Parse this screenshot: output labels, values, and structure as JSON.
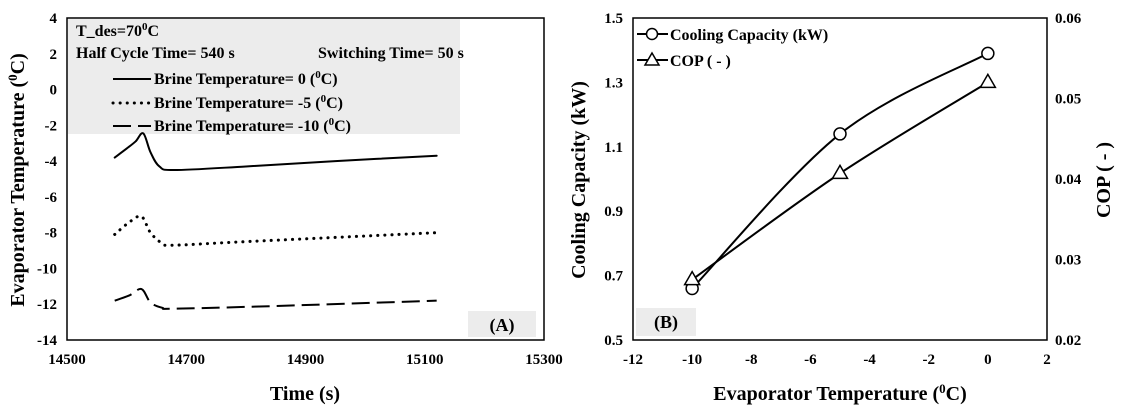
{
  "chart_data": [
    {
      "panel": "(A)",
      "type": "line",
      "xlabel": "Time (s)",
      "ylabel_main": "Evaporator Temperature (",
      "ylabel_sup": "0",
      "ylabel_end": "C)",
      "xlim": [
        14500,
        15300
      ],
      "ylim": [
        -14,
        4
      ],
      "xticks": [
        "14500",
        "14700",
        "14900",
        "15100",
        "15300"
      ],
      "yticks": [
        "4",
        "2",
        "0",
        "-2",
        "-4",
        "-6",
        "-8",
        "-10",
        "-12",
        "-14"
      ],
      "info": {
        "t_des_main": "T_des=70",
        "t_des_sup": "0",
        "t_des_end": "C",
        "half_cycle": "Half Cycle Time= 540 s",
        "switching": "Switching Time= 50 s"
      },
      "series": [
        {
          "name_main": "Brine Temperature= 0 (",
          "name_sup": "0",
          "name_end": "C)",
          "style": "solid",
          "points": [
            [
              14580,
              -3.8
            ],
            [
              14600,
              -3.3
            ],
            [
              14615,
              -2.9
            ],
            [
              14628,
              -2.45
            ],
            [
              14640,
              -3.5
            ],
            [
              14655,
              -4.3
            ],
            [
              14680,
              -4.5
            ],
            [
              14800,
              -4.3
            ],
            [
              14950,
              -4.0
            ],
            [
              15120,
              -3.7
            ]
          ]
        },
        {
          "name_main": "Brine Temperature= -5 (",
          "name_sup": "0",
          "name_end": "C)",
          "style": "dotted",
          "points": [
            [
              14580,
              -8.1
            ],
            [
              14605,
              -7.4
            ],
            [
              14625,
              -7.1
            ],
            [
              14640,
              -8.0
            ],
            [
              14660,
              -8.6
            ],
            [
              14680,
              -8.7
            ],
            [
              14800,
              -8.5
            ],
            [
              15120,
              -8.0
            ]
          ]
        },
        {
          "name_main": "Brine Temperature= -10 (",
          "name_sup": "0",
          "name_end": "C)",
          "style": "dashed",
          "points": [
            [
              14580,
              -11.8
            ],
            [
              14605,
              -11.5
            ],
            [
              14625,
              -11.15
            ],
            [
              14640,
              -11.9
            ],
            [
              14660,
              -12.2
            ],
            [
              14680,
              -12.25
            ],
            [
              14850,
              -12.1
            ],
            [
              15120,
              -11.8
            ]
          ]
        }
      ]
    },
    {
      "panel": "(B)",
      "type": "line",
      "xlabel_main": "Evaporator Temperature (",
      "xlabel_sup": "0",
      "xlabel_end": "C)",
      "ylabel_left": "Cooling Capacity (kW)",
      "ylabel_right": "COP ( - )",
      "xlim": [
        -12,
        2
      ],
      "ylim_left": [
        0.5,
        1.5
      ],
      "ylim_right": [
        0.02,
        0.06
      ],
      "xticks": [
        "-12",
        "-10",
        "-8",
        "-6",
        "-4",
        "-2",
        "0",
        "2"
      ],
      "yticks_left": [
        "1.5",
        "1.3",
        "1.1",
        "0.9",
        "0.7",
        "0.5"
      ],
      "yticks_right": [
        "0.06",
        "0.05",
        "0.04",
        "0.03",
        "0.02"
      ],
      "series": [
        {
          "name": "Cooling Capacity (kW)",
          "marker": "circle",
          "axis": "left",
          "x": [
            -10,
            -5,
            0
          ],
          "y": [
            0.66,
            1.14,
            1.39
          ]
        },
        {
          "name": "COP ( - )",
          "marker": "triangle",
          "axis": "right",
          "x": [
            -10,
            -5,
            0
          ],
          "y": [
            0.0275,
            0.0407,
            0.052
          ]
        }
      ]
    }
  ]
}
